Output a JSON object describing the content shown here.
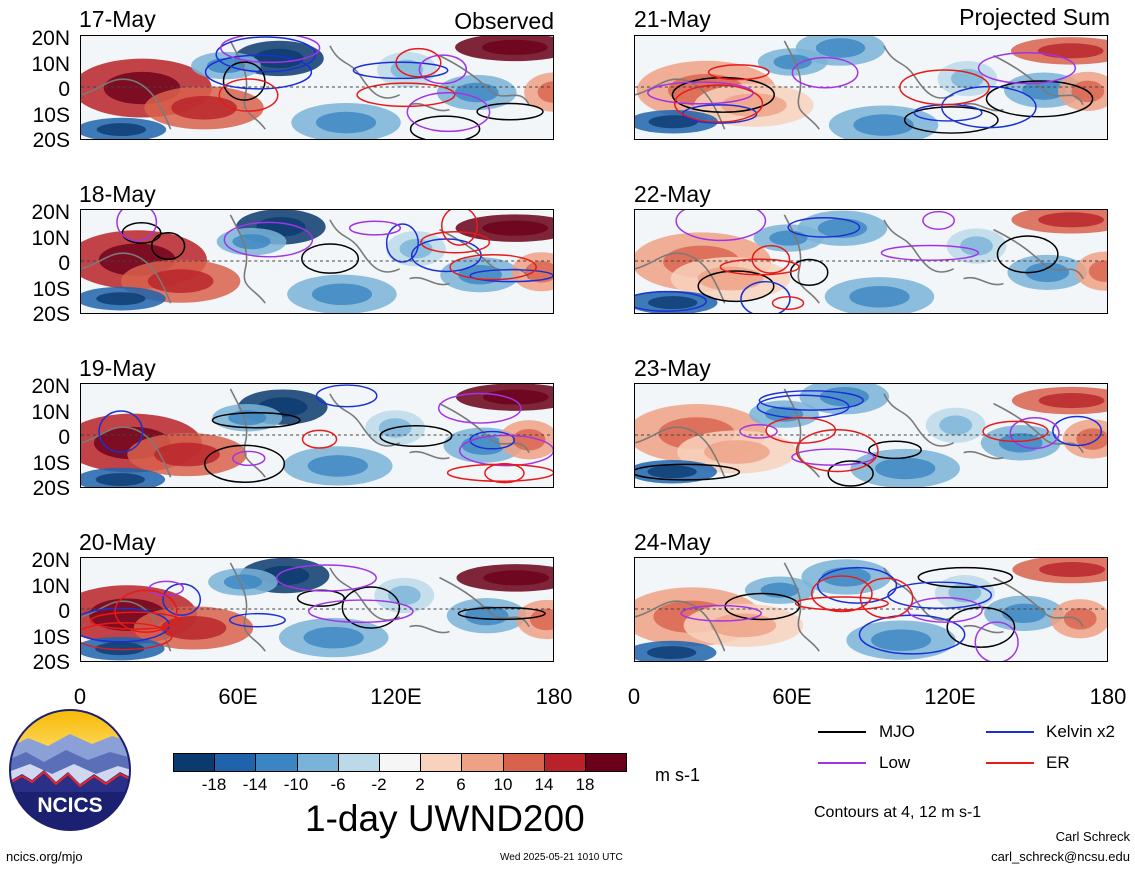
{
  "header": {
    "observed": "Observed",
    "projected": "Projected Sum"
  },
  "panels_left": [
    {
      "date": "17-May"
    },
    {
      "date": "18-May"
    },
    {
      "date": "19-May"
    },
    {
      "date": "20-May"
    }
  ],
  "panels_right": [
    {
      "date": "21-May"
    },
    {
      "date": "22-May"
    },
    {
      "date": "23-May"
    },
    {
      "date": "24-May"
    }
  ],
  "lat_labels": [
    "20N",
    "10N",
    "0",
    "10S",
    "20S"
  ],
  "lon_labels": [
    "0",
    "60E",
    "120E",
    "180"
  ],
  "colorbar": {
    "labels": [
      "-18",
      "-14",
      "-10",
      "-6",
      "-2",
      "2",
      "6",
      "10",
      "14",
      "18"
    ],
    "colors": [
      "#0b3a6f",
      "#1f63ad",
      "#3b86c2",
      "#7ab3d8",
      "#bcd9ea",
      "#f6f6f6",
      "#f8d2bd",
      "#eea184",
      "#d9624d",
      "#b82228",
      "#6a0019"
    ],
    "units": "m s-1",
    "title": "1-day UWND200"
  },
  "legend": {
    "items": [
      {
        "label": "MJO",
        "color": "#000000"
      },
      {
        "label": "Kelvin x2",
        "color": "#1a2fd6"
      },
      {
        "label": "Low",
        "color": "#a233e6"
      },
      {
        "label": "ER",
        "color": "#e61a1a"
      }
    ],
    "note": "Contours at 4, 12 m s-1"
  },
  "logo": {
    "text": "NCICS"
  },
  "footer": {
    "url": "ncics.org/mjo",
    "timestamp": "Wed 2025-05-21 1010 UTC",
    "author": "Carl Schreck",
    "email": "carl_schreck@ncsu.edu"
  }
}
